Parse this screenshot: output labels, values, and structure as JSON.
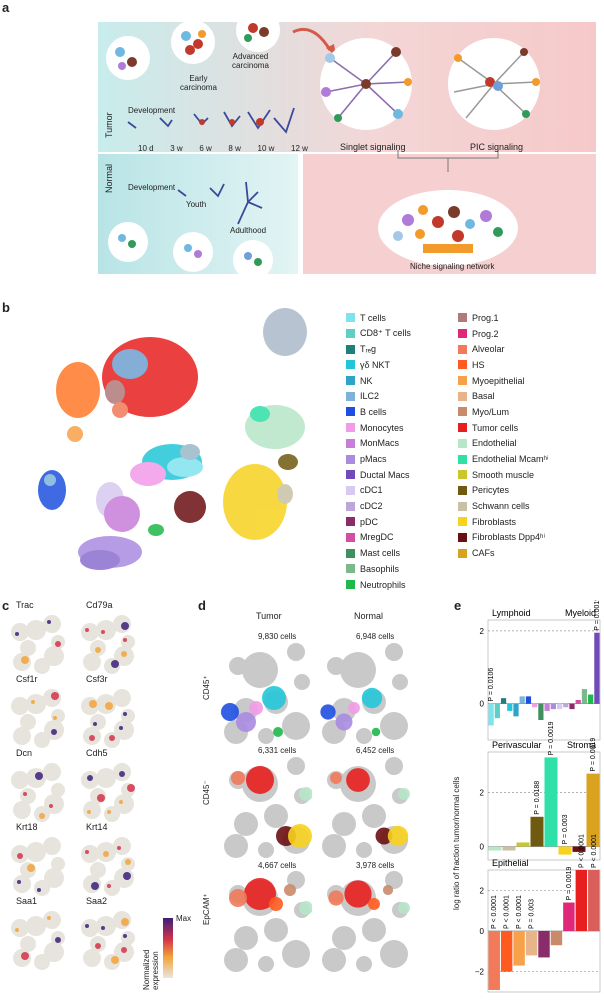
{
  "panel_a": {
    "letter": "a",
    "tumor_label": "Tumor",
    "normal_label": "Normal",
    "stage_early": "Early\ncarcinoma",
    "stage_advanced": "Advanced\ncarcinoma",
    "development_tumor": "Development",
    "timepoints": [
      "10 d",
      "3 w",
      "6 w",
      "8 w",
      "10 w",
      "12 w"
    ],
    "development_normal": "Development",
    "youth": "Youth",
    "adulthood": "Adulthood",
    "singlet": "Singlet signaling",
    "pic": "PIC signaling",
    "niche": "Niche signaling network"
  },
  "panel_b": {
    "letter": "b",
    "legend_col1": [
      {
        "label": "T cells",
        "color": "#7fe3ee"
      },
      {
        "label": "CD8⁺ T cells",
        "color": "#5fcfc6"
      },
      {
        "label": "Tᵣₑg",
        "color": "#1f7f7a"
      },
      {
        "label": "γδ NKT",
        "color": "#23c6d8"
      },
      {
        "label": "NK",
        "color": "#2fa3c8"
      },
      {
        "label": "ILC2",
        "color": "#7db3d9"
      },
      {
        "label": "B cells",
        "color": "#1f4fe0"
      },
      {
        "label": "Monocytes",
        "color": "#f29be8"
      },
      {
        "label": "MonMacs",
        "color": "#c77ed9"
      },
      {
        "label": "pMacs",
        "color": "#a98be0"
      },
      {
        "label": "Ductal Macs",
        "color": "#6f4ab8"
      },
      {
        "label": "cDC1",
        "color": "#d8c9f0"
      },
      {
        "label": "cDC2",
        "color": "#bfa6d9"
      },
      {
        "label": "pDC",
        "color": "#8a2c6a"
      },
      {
        "label": "MregDC",
        "color": "#d24fa3"
      },
      {
        "label": "Mast cells",
        "color": "#3f8f5f"
      },
      {
        "label": "Basophils",
        "color": "#7bb98a"
      },
      {
        "label": "Neutrophils",
        "color": "#1fb84a"
      }
    ],
    "legend_col2": [
      {
        "label": "Prog.1",
        "color": "#b07a7a"
      },
      {
        "label": "Prog.2",
        "color": "#e0287a"
      },
      {
        "label": "Alveolar",
        "color": "#f07a5a"
      },
      {
        "label": "HS",
        "color": "#ff5a1f"
      },
      {
        "label": "Myoepithelial",
        "color": "#f7a24a"
      },
      {
        "label": "Basal",
        "color": "#e8b48a"
      },
      {
        "label": "Myo/Lum",
        "color": "#c98a6a"
      },
      {
        "label": "Tumor cells",
        "color": "#e81f1f"
      },
      {
        "label": "Endothelial",
        "color": "#b7e6c8"
      },
      {
        "label": "Endothelial Mcamʰⁱ",
        "color": "#2fe0a8"
      },
      {
        "label": "Smooth muscle",
        "color": "#c9c72a"
      },
      {
        "label": "Pericytes",
        "color": "#6f5a10"
      },
      {
        "label": "Schwann cells",
        "color": "#c9c1a6"
      },
      {
        "label": "Fibroblasts",
        "color": "#f7d21f"
      },
      {
        "label": "Fibroblasts Dpp4ʰⁱ",
        "color": "#6a0f12"
      },
      {
        "label": "CAFs",
        "color": "#d9a21f"
      }
    ]
  },
  "panel_c": {
    "letter": "c",
    "genes": [
      "Trac",
      "Cd79a",
      "Csf1r",
      "Csf3r",
      "Dcn",
      "Cdh5",
      "Krt18",
      "Krt14",
      "Saa1",
      "Saa2"
    ],
    "colorbar_label": "Normalized\nexpression",
    "colorbar_max": "Max"
  },
  "panel_d": {
    "letter": "d",
    "col_tumor": "Tumor",
    "col_normal": "Normal",
    "rows": [
      {
        "label": "CD45⁺",
        "tumor_cells": "9,830 cells",
        "normal_cells": "6,948 cells"
      },
      {
        "label": "CD45⁻",
        "tumor_cells": "6,331 cells",
        "normal_cells": "6,452 cells"
      },
      {
        "label": "EpCAM⁺",
        "tumor_cells": "4,667 cells",
        "normal_cells": "3,978 cells"
      }
    ]
  },
  "panel_e": {
    "letter": "e",
    "ylabel": "log ratio of fraction tumor/normal cells",
    "subplots": [
      {
        "titles": [
          "Lymphoid",
          "Myeloid"
        ],
        "yticks": [
          "2",
          "0"
        ],
        "ylim": [
          -1,
          2.3
        ],
        "pvalues": [
          "P = 0.0106",
          "P = 0.0019"
        ],
        "bars": [
          {
            "color": "#7fe3ee",
            "value": -0.6
          },
          {
            "color": "#5fcfc6",
            "value": -0.4
          },
          {
            "color": "#1f7f7a",
            "value": 0.15
          },
          {
            "color": "#23c6d8",
            "value": -0.2
          },
          {
            "color": "#2fa3c8",
            "value": -0.35
          },
          {
            "color": "#7db3d9",
            "value": 0.2
          },
          {
            "color": "#1f4fe0",
            "value": 0.2
          },
          {
            "color": "#f29be8",
            "value": -0.1
          },
          {
            "color": "#3f8f5f",
            "value": -0.45
          },
          {
            "color": "#c77ed9",
            "value": -0.2
          },
          {
            "color": "#a98be0",
            "value": -0.15
          },
          {
            "color": "#d8c9f0",
            "value": -0.15
          },
          {
            "color": "#bfa6d9",
            "value": -0.1
          },
          {
            "color": "#8a2c6a",
            "value": -0.15
          },
          {
            "color": "#d24fa3",
            "value": 0.1
          },
          {
            "color": "#7bb98a",
            "value": 0.4
          },
          {
            "color": "#1fb84a",
            "value": 0.25
          },
          {
            "color": "#6f4ab8",
            "value": 1.95
          }
        ]
      },
      {
        "titles": [
          "Perivascular",
          "Stroma"
        ],
        "yticks": [
          "2",
          "0"
        ],
        "ylim": [
          -0.5,
          3.5
        ],
        "pvalues": [
          "P = 0.0019",
          "P = 0.0188",
          "P = 0.003",
          "P = 0.0019"
        ],
        "bars": [
          {
            "color": "#b7e6c8",
            "value": -0.15
          },
          {
            "color": "#c9c1a6",
            "value": -0.15
          },
          {
            "color": "#c9c72a",
            "value": 0.15
          },
          {
            "color": "#6f5a10",
            "value": 1.1
          },
          {
            "color": "#2fe0a8",
            "value": 3.3
          },
          {
            "color": "#f7d21f",
            "value": -0.3
          },
          {
            "color": "#6a0f12",
            "value": -0.2
          },
          {
            "color": "#d9a21f",
            "value": 2.7
          }
        ]
      },
      {
        "titles": [
          "Epithelial"
        ],
        "yticks": [
          "2",
          "0",
          "−2"
        ],
        "ylim": [
          -3,
          3
        ],
        "pvalues": [
          "P < 0.0001",
          "P < 0.0001",
          "P < 0.0001",
          "P = 0.003",
          "P = 0.0019",
          "P < 0.0001",
          "P < 0.0001"
        ],
        "bars": [
          {
            "color": "#f07a5a",
            "value": -2.9
          },
          {
            "color": "#ff5a1f",
            "value": -2.0
          },
          {
            "color": "#f7a24a",
            "value": -1.7
          },
          {
            "color": "#e8b48a",
            "value": -1.2
          },
          {
            "color": "#8a2c6a",
            "value": -1.3
          },
          {
            "color": "#c98a6a",
            "value": -0.7
          },
          {
            "color": "#e0287a",
            "value": 1.4
          },
          {
            "color": "#e81f1f",
            "value": 3.0
          },
          {
            "color": "#d9605a",
            "value": 3.0
          }
        ]
      }
    ]
  }
}
